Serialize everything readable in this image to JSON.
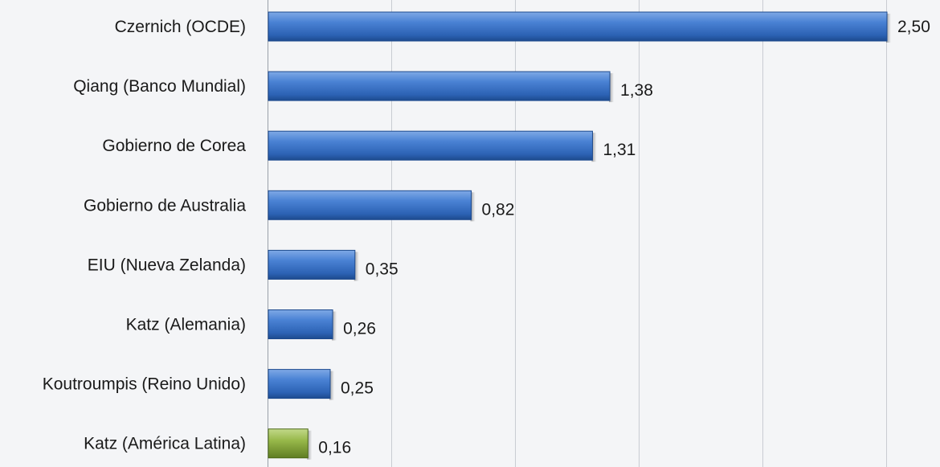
{
  "chart_data": {
    "type": "bar",
    "orientation": "horizontal",
    "categories": [
      "Czernich (OCDE)",
      "Qiang (Banco Mundial)",
      "Gobierno de Corea",
      "Gobierno de Australia",
      "EIU (Nueva Zelanda)",
      "Katz (Alemania)",
      "Koutroumpis (Reino Unido)",
      "Katz (América Latina)"
    ],
    "values": [
      2.5,
      1.38,
      1.31,
      0.82,
      0.35,
      0.26,
      0.25,
      0.16
    ],
    "value_labels": [
      "2,50",
      "1,38",
      "1,31",
      "0,82",
      "0,35",
      "0,26",
      "0,25",
      "0,16"
    ],
    "xlim": [
      0,
      2.5
    ],
    "grid": "vertical",
    "title": "",
    "xlabel": "",
    "ylabel": "",
    "colors": {
      "default_bar": "#3a74c8",
      "highlight_bar": "#8fb040",
      "grid": "#c9ccd2",
      "background": "#f4f5f7"
    },
    "highlight_index": 7
  }
}
